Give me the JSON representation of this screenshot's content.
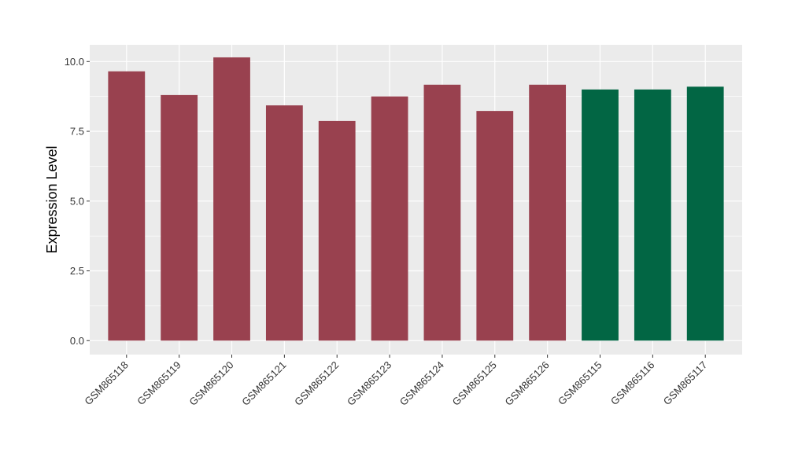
{
  "chart_data": {
    "type": "bar",
    "categories": [
      "GSM865118",
      "GSM865119",
      "GSM865120",
      "GSM865121",
      "GSM865122",
      "GSM865123",
      "GSM865124",
      "GSM865125",
      "GSM865126",
      "GSM865115",
      "GSM865116",
      "GSM865117"
    ],
    "values": [
      9.65,
      8.8,
      10.15,
      8.43,
      7.87,
      8.75,
      9.17,
      8.23,
      9.17,
      9.0,
      9.0,
      9.1
    ],
    "bar_colors": [
      "#99414f",
      "#99414f",
      "#99414f",
      "#99414f",
      "#99414f",
      "#99414f",
      "#99414f",
      "#99414f",
      "#99414f",
      "#026644",
      "#026644",
      "#026644"
    ],
    "title": "",
    "xlabel": "",
    "ylabel": "Expression Level",
    "ylim": [
      -0.5,
      10.6
    ],
    "yticks": [
      0,
      2.5,
      5,
      7.5,
      10
    ],
    "ytick_labels": [
      "0.0",
      "2.5",
      "5.0",
      "7.5",
      "10.0"
    ],
    "grid": true,
    "panel_background": "#ebebeb",
    "gridline_color": "#ffffff"
  }
}
